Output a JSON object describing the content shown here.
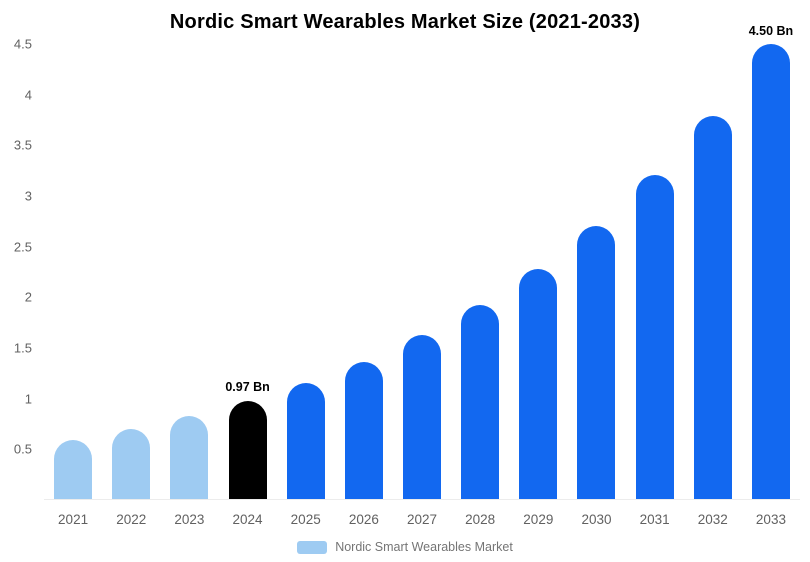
{
  "chart_data": {
    "type": "bar",
    "title": "Nordic Smart Wearables Market Size (2021-2033)",
    "unit": "Bn",
    "categories": [
      "2021",
      "2022",
      "2023",
      "2024",
      "2025",
      "2026",
      "2027",
      "2028",
      "2029",
      "2030",
      "2031",
      "2032",
      "2033"
    ],
    "values": [
      0.58,
      0.69,
      0.82,
      0.97,
      1.15,
      1.36,
      1.62,
      1.92,
      2.27,
      2.7,
      3.2,
      3.79,
      4.5
    ],
    "bar_colors": [
      "#9ECBF2",
      "#9ECBF2",
      "#9ECBF2",
      "#000000",
      "#1268F0",
      "#1268F0",
      "#1268F0",
      "#1268F0",
      "#1268F0",
      "#1268F0",
      "#1268F0",
      "#1268F0",
      "#1268F0"
    ],
    "annotations": [
      {
        "category": "2024",
        "text": "0.97 Bn"
      },
      {
        "category": "2033",
        "text": "4.50 Bn"
      }
    ],
    "ylim": [
      0,
      4.5
    ],
    "ytick_values": [
      0.5,
      1,
      1.5,
      2,
      2.5,
      3,
      3.5,
      4,
      4.5
    ],
    "ytick_labels": [
      "0.5",
      "1",
      "1.5",
      "2",
      "2.5",
      "3",
      "3.5",
      "4",
      "4.5"
    ],
    "grid": false,
    "legend_position": "bottom",
    "legend_label": "Nordic Smart Wearables Market",
    "colors": {
      "historical": "#9ECBF2",
      "highlight": "#000000",
      "forecast": "#1268F0",
      "axis_label": "#616161",
      "data_label": "#000000",
      "background": "#FFFFFF"
    }
  }
}
